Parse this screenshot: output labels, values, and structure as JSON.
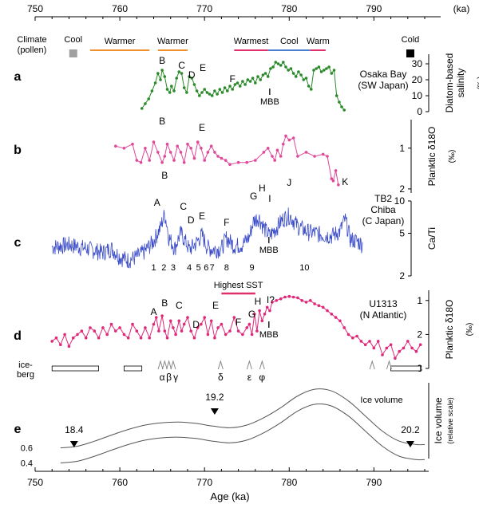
{
  "chart_data": {
    "type": "line",
    "top_axis": {
      "unit": "(ka)",
      "ticks": [
        "750",
        "760",
        "770",
        "780",
        "790"
      ]
    },
    "bottom_axis": {
      "label": "Age (ka)",
      "ticks": [
        "750",
        "760",
        "770",
        "780",
        "790"
      ]
    },
    "xlim": [
      750,
      796
    ],
    "climate": {
      "title": "Climate\n(pollen)",
      "labels": {
        "cool1": "Cool",
        "warmer1": "Warmer",
        "warmer2": "Warmer",
        "warmest": "Warmest",
        "cool2": "Cool",
        "warm": "Warm",
        "cold": "Cold"
      },
      "bars": [
        {
          "key": "warmer1",
          "x": [
            756.5,
            763.5
          ],
          "color": "#f0902a"
        },
        {
          "key": "warmer2",
          "x": [
            764.5,
            768
          ],
          "color": "#f0902a"
        },
        {
          "key": "warmest",
          "x": [
            773.5,
            777.5
          ],
          "color": "#e0306a"
        },
        {
          "key": "cool2",
          "x": [
            777.5,
            782.5
          ],
          "color": "#4a7fd0"
        },
        {
          "key": "warm",
          "x": [
            782.5,
            784.3
          ],
          "color": "#e0306a"
        }
      ],
      "cool_marker": 754.5,
      "cold_marker": 794.3
    },
    "panels": [
      {
        "letter": "a",
        "site": "Osaka Bay\n(SW Japan)",
        "ylabel": "Diatom-based\nsalinity",
        "yunit": "(‰)",
        "ylim": [
          0,
          36
        ],
        "yticks": [
          "0",
          "10",
          "20",
          "30"
        ],
        "color": "#2a8a2a",
        "series": {
          "name": "",
          "x": [
            762.6,
            763,
            763.4,
            763.8,
            764.2,
            764.5,
            764.8,
            765,
            765.3,
            765.6,
            765.9,
            766.1,
            766.4,
            766.7,
            767,
            767.3,
            767.6,
            767.9,
            768.2,
            768.5,
            768.8,
            769.1,
            769.4,
            769.7,
            770,
            770.3,
            770.6,
            770.9,
            771.2,
            771.5,
            771.8,
            772.1,
            772.4,
            772.7,
            773,
            773.3,
            773.6,
            773.9,
            774.2,
            774.5,
            774.8,
            775.1,
            775.4,
            775.7,
            776,
            776.3,
            776.6,
            776.9,
            777.2,
            777.5,
            777.8,
            778.1,
            778.4,
            778.7,
            779,
            779.3,
            779.6,
            779.9,
            780.2,
            780.5,
            780.8,
            781.1,
            781.4,
            781.7,
            782,
            782.3,
            782.6,
            782.9,
            783.2,
            783.5,
            783.8,
            784.1,
            784.4,
            784.7,
            785,
            785.3,
            785.6,
            785.9,
            786.2,
            786.5
          ],
          "y": [
            2,
            5,
            8,
            13,
            18,
            24,
            20,
            26,
            22,
            14,
            12,
            16,
            13,
            21,
            25,
            24,
            15,
            12,
            22,
            21,
            17,
            13,
            10,
            12,
            14,
            12,
            11,
            10,
            13,
            11,
            14,
            12,
            15,
            13,
            16,
            14,
            17,
            18,
            16,
            19,
            17,
            20,
            19,
            21,
            18,
            22,
            20,
            23,
            24,
            22,
            27,
            28,
            31,
            30,
            29,
            31,
            28,
            26,
            27,
            24,
            22,
            25,
            23,
            20,
            21,
            16,
            14,
            26,
            27,
            28,
            25,
            26,
            27,
            28,
            24,
            26,
            10,
            6,
            3,
            1
          ]
        },
        "labels": [
          {
            "t": "B",
            "x": 765
          },
          {
            "t": "C",
            "x": 767.3
          },
          {
            "t": "D",
            "x": 768.5
          },
          {
            "t": "E",
            "x": 769.8
          },
          {
            "t": "F",
            "x": 773.3
          }
        ],
        "marker": {
          "t": "MBB",
          "x": 777.7
        }
      },
      {
        "letter": "b",
        "ylabel": "Planktic δ18O",
        "yunit": "(‰)",
        "ylim": [
          2.1,
          0.3
        ],
        "yticks": [
          "1",
          "2"
        ],
        "color": "#e0489a",
        "series": {
          "name": "",
          "x": [
            759.5,
            760.5,
            761.5,
            762,
            762.5,
            763,
            763.5,
            764,
            764.5,
            765,
            765.3,
            765.6,
            766,
            766.4,
            766.8,
            767.2,
            767.6,
            768,
            768.4,
            768.8,
            769.2,
            769.6,
            770,
            770.4,
            770.8,
            771.2,
            771.6,
            772,
            772.5,
            773,
            774,
            775,
            776,
            777,
            777.5,
            778,
            778.3,
            778.6,
            779,
            779.3,
            779.6,
            780,
            780.5,
            781,
            782,
            783,
            784,
            784.5,
            785,
            785.2,
            785.5,
            785.8
          ],
          "y": [
            0.95,
            1.0,
            0.9,
            1.3,
            1.35,
            1.0,
            1.3,
            0.85,
            1.1,
            1.35,
            1.2,
            0.9,
            1.1,
            1.3,
            0.95,
            1.1,
            1.35,
            0.9,
            1.0,
            1.25,
            0.85,
            1.0,
            1.3,
            1.1,
            0.95,
            1.1,
            1.2,
            1.25,
            1.3,
            1.4,
            1.35,
            1.35,
            1.3,
            1.1,
            1.0,
            1.2,
            1.3,
            1.05,
            1.2,
            0.9,
            0.7,
            0.8,
            0.75,
            1.2,
            1.1,
            1.2,
            1.15,
            1.2,
            1.75,
            1.8,
            1.55,
            1.9
          ]
        },
        "labels": [
          {
            "t": "B",
            "x": 765
          },
          {
            "t": "E",
            "x": 769.7
          }
        ]
      },
      {
        "letter": "c",
        "site": "TB2\nChiba\n(C Japan)",
        "ylabel": "Ca/Ti",
        "yscale": "log",
        "ylim": [
          2,
          10
        ],
        "yticks": [
          "2",
          "5",
          "10"
        ],
        "color": "#3a4bc8",
        "labels": [
          {
            "t": "A",
            "x": 764.4
          },
          {
            "t": "B",
            "x": 765.3
          },
          {
            "t": "C",
            "x": 767.5
          },
          {
            "t": "D",
            "x": 768.4
          },
          {
            "t": "E",
            "x": 769.7
          },
          {
            "t": "F",
            "x": 772.6
          },
          {
            "t": "G",
            "x": 775.8
          },
          {
            "t": "H",
            "x": 776.8
          },
          {
            "t": "I",
            "x": 777.7
          },
          {
            "t": "J",
            "x": 780
          },
          {
            "t": "K",
            "x": 786.6
          }
        ],
        "numbers": [
          {
            "t": "1",
            "x": 764
          },
          {
            "t": "2",
            "x": 765.2
          },
          {
            "t": "3",
            "x": 766.3
          },
          {
            "t": "4",
            "x": 768.2
          },
          {
            "t": "5",
            "x": 769.3
          },
          {
            "t": "6",
            "x": 770.2
          },
          {
            "t": "7",
            "x": 770.9
          },
          {
            "t": "8",
            "x": 772.6
          },
          {
            "t": "9",
            "x": 775.6
          },
          {
            "t": "10",
            "x": 781.8
          }
        ],
        "marker": {
          "t": "MBB",
          "x": 777.6
        }
      },
      {
        "letter": "d",
        "site": "U1313\n(N Atlantic)",
        "ylabel": "Planktic δ18O",
        "yunit": "(‰)",
        "ylim": [
          3.0,
          0.7
        ],
        "yticks": [
          "1",
          "2",
          "3"
        ],
        "color": "#e0287a",
        "series": {
          "name": "",
          "x": [
            752,
            752.5,
            753,
            753.5,
            754,
            754.5,
            755,
            755.5,
            756,
            756.5,
            757,
            757.5,
            758,
            758.5,
            759,
            759.5,
            760,
            760.5,
            761,
            761.5,
            762,
            762.5,
            763,
            763.5,
            764,
            764.3,
            764.6,
            765,
            765.3,
            765.6,
            766,
            766.3,
            766.6,
            767,
            767.3,
            767.6,
            768,
            768.4,
            768.8,
            769.2,
            769.6,
            770,
            770.4,
            770.8,
            771.2,
            771.6,
            772,
            772.5,
            773,
            773.5,
            774,
            774.5,
            775,
            775.3,
            775.6,
            775.9,
            776.2,
            776.5,
            776.8,
            777.1,
            777.4,
            777.7,
            778,
            778.5,
            779,
            779.5,
            780,
            780.5,
            781,
            781.5,
            782,
            782.5,
            783,
            783.5,
            784,
            784.5,
            785,
            785.5,
            786,
            786.5,
            787,
            787.5,
            788,
            788.5,
            789,
            789.5,
            790,
            790.5,
            791,
            791.5,
            792,
            792.5,
            793,
            793.5,
            794,
            794.5,
            795,
            795.5
          ],
          "y": [
            2.2,
            2.1,
            2.3,
            2.0,
            2.35,
            2.1,
            2.0,
            1.9,
            2.1,
            1.8,
            1.9,
            2.1,
            1.8,
            2.0,
            1.7,
            1.9,
            1.8,
            2.0,
            2.1,
            1.7,
            1.9,
            2.1,
            1.8,
            2.1,
            1.7,
            1.5,
            1.9,
            1.45,
            1.9,
            2.1,
            1.6,
            1.8,
            2.0,
            1.6,
            1.9,
            1.7,
            1.5,
            1.9,
            2.1,
            1.8,
            1.7,
            1.5,
            2.0,
            1.6,
            2.1,
            1.8,
            1.7,
            2.0,
            1.9,
            1.5,
            1.9,
            2.0,
            1.8,
            1.7,
            2.0,
            1.4,
            1.9,
            1.3,
            1.6,
            1.4,
            1.2,
            1.3,
            1.05,
            1.0,
            0.95,
            0.9,
            0.88,
            0.9,
            0.92,
            1.0,
            1.05,
            1.0,
            1.1,
            1.15,
            1.2,
            1.3,
            1.4,
            1.5,
            1.6,
            1.8,
            2.0,
            2.1,
            2.05,
            2.2,
            2.3,
            2.2,
            2.4,
            2.2,
            2.6,
            2.4,
            2.3,
            2.7,
            2.5,
            2.4,
            2.2,
            2.4,
            2.5,
            2.3
          ]
        },
        "labels": [
          {
            "t": "A",
            "x": 764
          },
          {
            "t": "B",
            "x": 765.3
          },
          {
            "t": "C",
            "x": 767
          },
          {
            "t": "D",
            "x": 769
          },
          {
            "t": "E",
            "x": 771.3
          },
          {
            "t": "F",
            "x": 774
          },
          {
            "t": "G",
            "x": 775.6
          },
          {
            "t": "H",
            "x": 776.3
          },
          {
            "t": "I?",
            "x": 777.8
          }
        ],
        "highest_sst": {
          "label": "Highest SST",
          "x": [
            772,
            776
          ]
        },
        "marker": {
          "t": "MBB",
          "x": 777.6
        },
        "iceberg": {
          "label": "ice-\nberg",
          "bars": [
            [
              752,
              757.5
            ],
            [
              760.5,
              762.6
            ],
            [
              792,
              795.5
            ]
          ],
          "greek": [
            {
              "t": "α",
              "x": 765
            },
            {
              "t": "β",
              "x": 765.8
            },
            {
              "t": "γ",
              "x": 766.6
            },
            {
              "t": "δ",
              "x": 771.9
            },
            {
              "t": "ε",
              "x": 775.3
            },
            {
              "t": "φ",
              "x": 776.8
            }
          ],
          "arrows": [
            764.8,
            765.3,
            765.8,
            766.3,
            771.9,
            775.3,
            776.8,
            789.8,
            791.8
          ]
        }
      },
      {
        "letter": "e",
        "ylabel": "Ice volume",
        "yunit": "(relative scale)",
        "curve_label": "Ice volume",
        "curves": [
          {
            "name": "0.6",
            "x": [
              753,
              755,
              757,
              759,
              761,
              763,
              765,
              767,
              769,
              771,
              773,
              775,
              777,
              779,
              781,
              783,
              785,
              787,
              789,
              791,
              793,
              795,
              796
            ],
            "y": [
              0.2,
              0.25,
              0.4,
              0.58,
              0.75,
              0.88,
              0.95,
              0.97,
              0.93,
              0.85,
              0.8,
              0.88,
              1.1,
              1.4,
              1.75,
              1.95,
              1.9,
              1.6,
              1.15,
              0.7,
              0.4,
              0.3,
              0.3
            ]
          },
          {
            "name": "0.4",
            "x": [
              753,
              755,
              757,
              759,
              761,
              763,
              765,
              767,
              769,
              771,
              773,
              775,
              777,
              779,
              781,
              783,
              785,
              787,
              789,
              791,
              793,
              795,
              796
            ],
            "y": [
              -0.25,
              -0.2,
              -0.05,
              0.13,
              0.3,
              0.43,
              0.5,
              0.52,
              0.48,
              0.4,
              0.35,
              0.43,
              0.65,
              0.95,
              1.3,
              1.5,
              1.45,
              1.15,
              0.7,
              0.25,
              -0.05,
              -0.15,
              -0.15
            ]
          }
        ],
        "arrows": [
          {
            "t": "18.4",
            "x": 754.6
          },
          {
            "t": "19.2",
            "x": 771.2
          },
          {
            "t": "20.2",
            "x": 794.3
          }
        ]
      }
    ]
  }
}
